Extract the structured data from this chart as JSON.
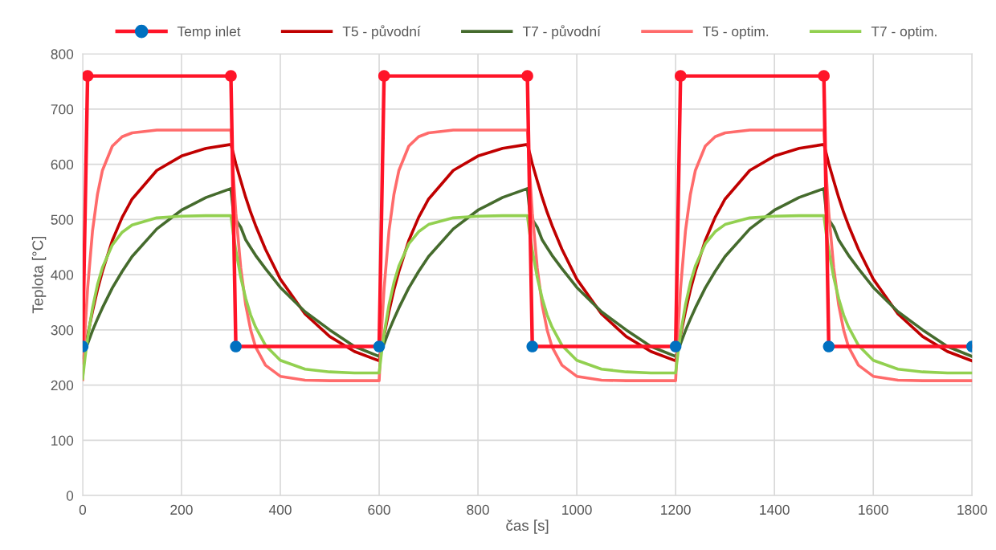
{
  "chart_data": {
    "type": "line",
    "xlabel": "čas [s]",
    "ylabel": "Teplota [°C]",
    "xlim": [
      0,
      1800
    ],
    "ylim": [
      0,
      800
    ],
    "xticks": [
      0,
      200,
      400,
      600,
      800,
      1000,
      1200,
      1400,
      1600,
      1800
    ],
    "yticks": [
      0,
      100,
      200,
      300,
      400,
      500,
      600,
      700,
      800
    ],
    "grid": true,
    "legend": "top",
    "line_style": "solid",
    "x": [
      0,
      5,
      10,
      20,
      30,
      40,
      60,
      80,
      100,
      150,
      200,
      250,
      300,
      305,
      310,
      320,
      330,
      340,
      350,
      370,
      400,
      450,
      500,
      550,
      600,
      605,
      610,
      620,
      630,
      640,
      660,
      680,
      700,
      750,
      800,
      850,
      900,
      905,
      910,
      920,
      930,
      940,
      950,
      970,
      1000,
      1050,
      1100,
      1150,
      1200,
      1205,
      1210,
      1220,
      1230,
      1240,
      1260,
      1280,
      1300,
      1350,
      1400,
      1450,
      1500,
      1505,
      1510,
      1520,
      1530,
      1540,
      1550,
      1570,
      1600,
      1650,
      1700,
      1750,
      1800
    ],
    "series": [
      {
        "name": "Temp inlet",
        "marker": "circle",
        "color": "#ff1428",
        "x": [
          0,
          10,
          300,
          310,
          600,
          610,
          900,
          910,
          1200,
          1210,
          1500,
          1510,
          1800
        ],
        "values": [
          270,
          760,
          760,
          270,
          270,
          760,
          760,
          270,
          270,
          760,
          760,
          270,
          270
        ],
        "colors": [
          "#0070c0",
          "#ff1428",
          "#ff1428",
          "#0070c0",
          "#0070c0",
          "#ff1428",
          "#ff1428",
          "#0070c0",
          "#0070c0",
          "#ff1428",
          "#ff1428",
          "#0070c0",
          "#0070c0"
        ]
      },
      {
        "name": "T5 - původní",
        "marker": "none",
        "color": "#c00000",
        "values": [
          240,
          266,
          290,
          334,
          373,
          406,
          462,
          504,
          537,
          589,
          615,
          629,
          636,
          619,
          601,
          570,
          540,
          513,
          489,
          446,
          392,
          329,
          288,
          261,
          244,
          266,
          290,
          334,
          373,
          406,
          462,
          504,
          537,
          589,
          615,
          629,
          636,
          619,
          601,
          570,
          540,
          513,
          489,
          446,
          392,
          329,
          288,
          261,
          244,
          266,
          290,
          334,
          373,
          406,
          462,
          504,
          537,
          589,
          615,
          629,
          636,
          619,
          601,
          570,
          540,
          513,
          489,
          446,
          392,
          329,
          288,
          261,
          244
        ]
      },
      {
        "name": "T7 - původní",
        "marker": "none",
        "color": "#456b2d",
        "values": [
          250,
          263,
          275,
          299,
          320,
          340,
          376,
          406,
          433,
          483,
          517,
          540,
          556,
          512,
          500,
          486,
          463,
          449,
          435,
          411,
          377,
          333,
          300,
          270,
          252,
          263,
          275,
          299,
          320,
          340,
          376,
          406,
          433,
          483,
          517,
          540,
          556,
          512,
          500,
          486,
          463,
          449,
          435,
          411,
          377,
          333,
          300,
          270,
          252,
          263,
          275,
          299,
          320,
          340,
          376,
          406,
          433,
          483,
          517,
          540,
          556,
          512,
          500,
          486,
          463,
          449,
          435,
          411,
          377,
          333,
          300,
          270,
          252
        ]
      },
      {
        "name": "T5 - optim.",
        "marker": "none",
        "color": "#ff6b6b",
        "values": [
          210,
          302,
          375,
          480,
          546,
          589,
          633,
          650,
          657,
          662,
          662,
          662,
          662,
          580,
          512,
          412,
          345,
          300,
          269,
          236,
          216,
          209,
          208,
          208,
          208,
          302,
          375,
          480,
          546,
          589,
          633,
          650,
          657,
          662,
          662,
          662,
          662,
          580,
          512,
          412,
          345,
          300,
          269,
          236,
          216,
          209,
          208,
          208,
          208,
          302,
          375,
          480,
          546,
          589,
          633,
          650,
          657,
          662,
          662,
          662,
          662,
          580,
          512,
          412,
          345,
          300,
          269,
          236,
          216,
          209,
          208,
          208,
          208
        ]
      },
      {
        "name": "T7 - optim.",
        "marker": "none",
        "color": "#92d050",
        "values": [
          212,
          251,
          285,
          340,
          382,
          413,
          454,
          477,
          490,
          503,
          506,
          507,
          507,
          473,
          444,
          395,
          357,
          327,
          305,
          272,
          245,
          229,
          224,
          222,
          222,
          260,
          293,
          346,
          386,
          416,
          456,
          478,
          491,
          503,
          506,
          507,
          507,
          473,
          444,
          395,
          357,
          327,
          305,
          272,
          245,
          229,
          224,
          222,
          222,
          260,
          293,
          346,
          386,
          416,
          456,
          478,
          491,
          503,
          506,
          507,
          507,
          473,
          444,
          395,
          357,
          327,
          305,
          272,
          245,
          229,
          224,
          222,
          222
        ]
      }
    ]
  }
}
